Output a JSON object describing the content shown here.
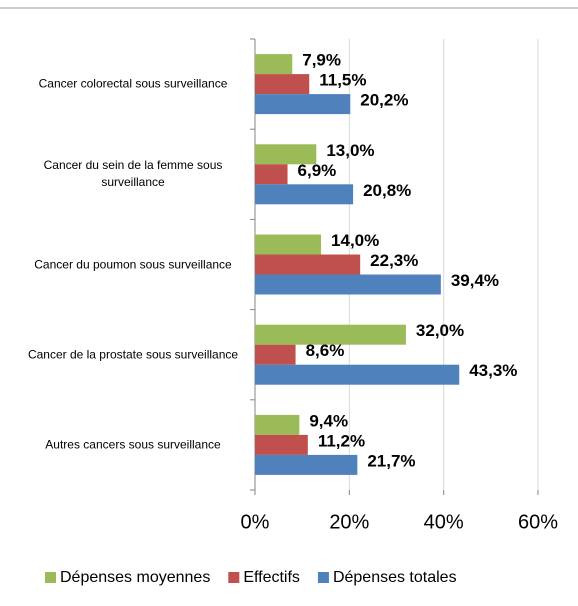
{
  "chart_data": {
    "type": "hbar",
    "categories": [
      "Cancer colorectal sous surveillance",
      "Cancer du sein de la femme sous surveillance",
      "Cancer du poumon sous surveillance",
      "Cancer de la prostate sous surveillance",
      "Autres cancers sous surveillance"
    ],
    "series": [
      {
        "name": "Dépenses moyennes",
        "color": "#9bbb59",
        "values": [
          7.9,
          13.0,
          14.0,
          32.0,
          9.4
        ],
        "value_labels": [
          "7,9%",
          "13,0%",
          "14,0%",
          "32,0%",
          "9,4%"
        ]
      },
      {
        "name": "Effectifs",
        "color": "#c0504d",
        "values": [
          11.5,
          6.9,
          22.3,
          8.6,
          11.2
        ],
        "value_labels": [
          "11,5%",
          "6,9%",
          "22,3%",
          "8,6%",
          "11,2%"
        ]
      },
      {
        "name": "Dépenses totales",
        "color": "#4f81bd",
        "values": [
          20.2,
          20.8,
          39.4,
          43.3,
          21.7
        ],
        "value_labels": [
          "20,2%",
          "20,8%",
          "39,4%",
          "43,3%",
          "21,7%"
        ]
      }
    ],
    "xlim": [
      0,
      60
    ],
    "xticks": [
      {
        "value": 0,
        "label": "0%"
      },
      {
        "value": 20,
        "label": "20%"
      },
      {
        "value": 40,
        "label": "40%"
      },
      {
        "value": 60,
        "label": "60%"
      }
    ],
    "grid": true
  }
}
